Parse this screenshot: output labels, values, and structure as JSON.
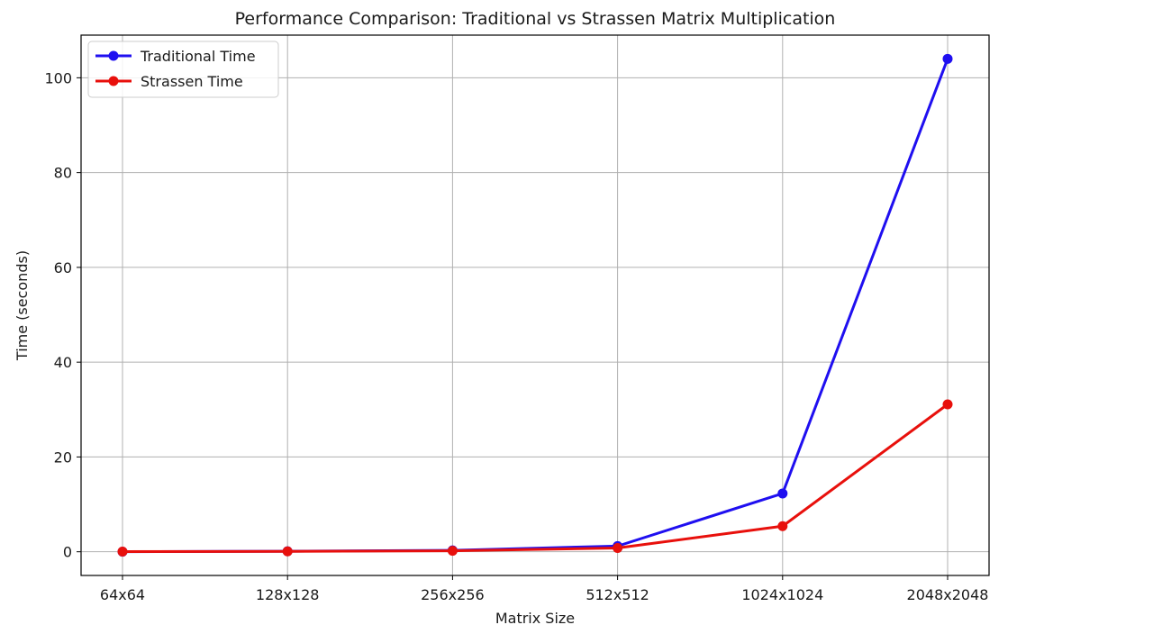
{
  "chart_data": {
    "type": "line",
    "title": "Performance Comparison: Traditional vs Strassen Matrix Multiplication",
    "xlabel": "Matrix Size",
    "ylabel": "Time (seconds)",
    "categories": [
      "64x64",
      "128x128",
      "256x256",
      "512x512",
      "1024x1024",
      "2048x2048"
    ],
    "ylim": [
      -5,
      109
    ],
    "yticks": [
      0,
      20,
      40,
      60,
      80,
      100
    ],
    "grid": true,
    "legend_position": "top-left",
    "series": [
      {
        "name": "Traditional Time",
        "color": "#1f0ff0",
        "marker": "circle",
        "values": [
          0.02,
          0.1,
          0.3,
          1.2,
          12.3,
          104.0
        ]
      },
      {
        "name": "Strassen Time",
        "color": "#e8100c",
        "marker": "circle",
        "values": [
          0.03,
          0.08,
          0.2,
          0.8,
          5.4,
          31.1
        ]
      }
    ]
  }
}
